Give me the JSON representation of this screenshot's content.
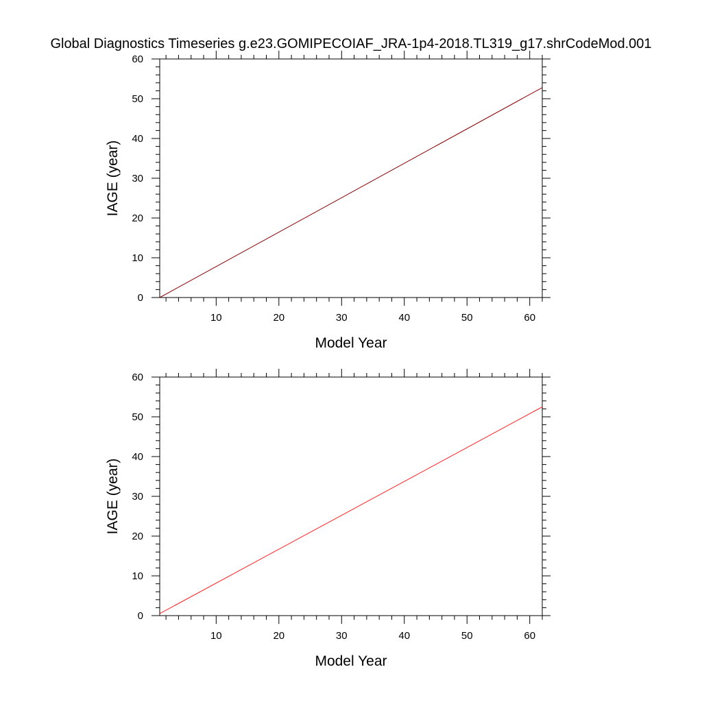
{
  "figure": {
    "title": "Global Diagnostics Timeseries g.e23.GOMIPECOIAF_JRA-1p4-2018.TL319_g17.shrCodeMod.001"
  },
  "chart_data": [
    {
      "type": "line",
      "xlabel": "Model Year",
      "ylabel": "IAGE (year)",
      "xlim": [
        1,
        62
      ],
      "ylim": [
        0,
        60
      ],
      "xticks": [
        10,
        20,
        30,
        40,
        50,
        60
      ],
      "yticks": [
        0,
        10,
        20,
        30,
        40,
        50,
        60
      ],
      "x_minor_step": 2,
      "y_minor_step": 2,
      "grid": false,
      "series": [
        {
          "color": "#8b0000",
          "x": [
            1,
            62
          ],
          "y": [
            0.0,
            52.8
          ]
        }
      ]
    },
    {
      "type": "line",
      "xlabel": "Model Year",
      "ylabel": "IAGE (year)",
      "xlim": [
        1,
        62
      ],
      "ylim": [
        0,
        60
      ],
      "xticks": [
        10,
        20,
        30,
        40,
        50,
        60
      ],
      "yticks": [
        0,
        10,
        20,
        30,
        40,
        50,
        60
      ],
      "x_minor_step": 2,
      "y_minor_step": 2,
      "grid": false,
      "series": [
        {
          "color": "#ff2020",
          "x": [
            1,
            62
          ],
          "y": [
            0.5,
            52.5
          ]
        }
      ]
    }
  ]
}
